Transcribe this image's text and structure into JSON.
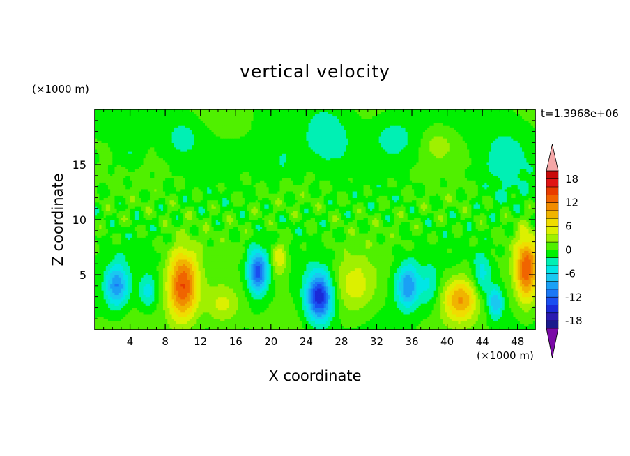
{
  "chart_data": {
    "type": "heatmap",
    "title": "vertical velocity",
    "xlabel": "X coordinate",
    "ylabel": "Z coordinate",
    "x_unit": "(×1000 m)",
    "y_unit": "(×1000 m)",
    "time_label": "t=1.3968e+06",
    "xlim": [
      0,
      50
    ],
    "ylim": [
      0,
      20
    ],
    "x_ticks": [
      4,
      8,
      12,
      16,
      20,
      24,
      28,
      32,
      36,
      40,
      44,
      48
    ],
    "y_ticks": [
      5,
      10,
      15
    ],
    "colorbar": {
      "levels": [
        -20,
        -18,
        -16,
        -14,
        -12,
        -10,
        -8,
        -6,
        -4,
        -2,
        0,
        2,
        4,
        6,
        8,
        10,
        12,
        14,
        16,
        18,
        20
      ],
      "tick_labels": [
        "18",
        "12",
        "6",
        "0",
        "-6",
        "-12",
        "-18"
      ],
      "tick_values": [
        18,
        12,
        6,
        0,
        -6,
        -12,
        -18
      ],
      "colors": [
        "#1a1a8c",
        "#2a1ab0",
        "#1a2ad8",
        "#1a4ef0",
        "#1a78f5",
        "#1aa0f5",
        "#1ac8f0",
        "#00e6e6",
        "#00f0b4",
        "#00f000",
        "#50f000",
        "#a0f000",
        "#dcf000",
        "#f0dc00",
        "#f0b400",
        "#f08c00",
        "#f06400",
        "#e83c00",
        "#e01414",
        "#c80a0a"
      ],
      "over_color": "#f4a6a6",
      "under_color": "#7a0aa6"
    },
    "features": [
      {
        "x": 2.5,
        "z": 4.0,
        "sx": 1.3,
        "sz": 1.9,
        "w": -10
      },
      {
        "x": 10.0,
        "z": 4.0,
        "sx": 1.7,
        "sz": 3.2,
        "w": 14
      },
      {
        "x": 14.5,
        "z": 2.3,
        "sx": 2.0,
        "sz": 1.8,
        "w": 5
      },
      {
        "x": 18.5,
        "z": 5.3,
        "sx": 1.1,
        "sz": 1.9,
        "w": -13
      },
      {
        "x": 21.0,
        "z": 6.5,
        "sx": 0.9,
        "sz": 1.6,
        "w": 6
      },
      {
        "x": 25.5,
        "z": 3.0,
        "sx": 1.5,
        "sz": 2.2,
        "w": -16
      },
      {
        "x": 29.5,
        "z": 4.0,
        "sx": 2.4,
        "sz": 2.6,
        "w": 5
      },
      {
        "x": 35.5,
        "z": 4.0,
        "sx": 1.3,
        "sz": 2.0,
        "w": -10
      },
      {
        "x": 41.5,
        "z": 2.8,
        "sx": 2.0,
        "sz": 2.0,
        "w": 10
      },
      {
        "x": 45.5,
        "z": 2.5,
        "sx": 0.8,
        "sz": 1.4,
        "w": -8
      },
      {
        "x": 49.0,
        "z": 5.5,
        "sx": 1.3,
        "sz": 3.0,
        "w": 13
      },
      {
        "x": 6.0,
        "z": 3.5,
        "sx": 1.0,
        "sz": 1.5,
        "w": -5
      },
      {
        "x": 38.0,
        "z": 4.0,
        "sx": 1.2,
        "sz": 2.0,
        "w": -4
      },
      {
        "x": 44.0,
        "z": 5.0,
        "sx": 1.0,
        "sz": 2.0,
        "w": -5
      },
      {
        "x": 26.5,
        "z": 17.5,
        "sx": 2.8,
        "sz": 2.8,
        "w": -3.5
      },
      {
        "x": 34.0,
        "z": 17.5,
        "sx": 2.5,
        "sz": 2.0,
        "w": -3
      },
      {
        "x": 46.5,
        "z": 15.5,
        "sx": 2.8,
        "sz": 3.5,
        "w": -3
      },
      {
        "x": 39.0,
        "z": 16.8,
        "sx": 1.6,
        "sz": 1.4,
        "w": 3
      },
      {
        "x": 10.0,
        "z": 17.5,
        "sx": 2.0,
        "sz": 1.8,
        "w": -3
      },
      {
        "x": 4.0,
        "z": 16.0,
        "sx": 1.5,
        "sz": 1.5,
        "w": -2.5
      },
      {
        "x": 21.5,
        "z": 15.5,
        "sx": 2.5,
        "sz": 2.0,
        "w": -2.5
      }
    ]
  }
}
